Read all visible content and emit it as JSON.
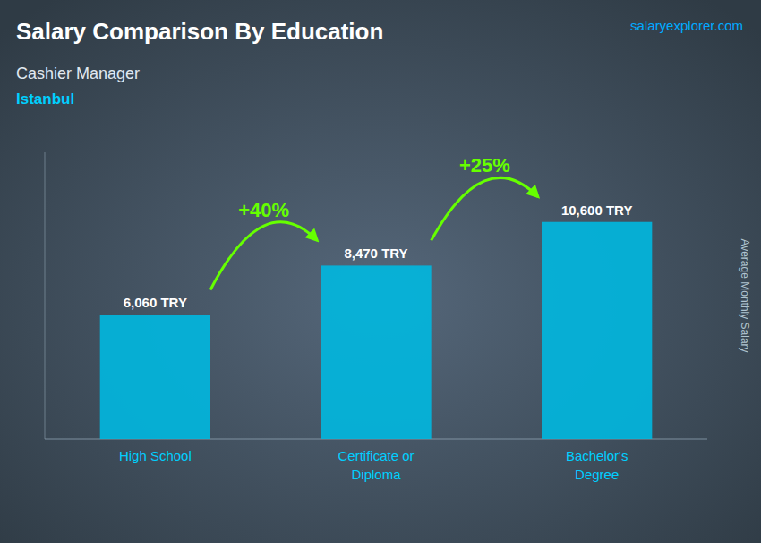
{
  "chart_data": {
    "type": "bar",
    "title": "Salary Comparison By Education",
    "subtitle": "Cashier Manager",
    "city": "Istanbul",
    "source": "salaryexplorer.com",
    "ylabel": "Average Monthly Salary",
    "categories": [
      "High School",
      "Certificate or\nDiploma",
      "Bachelor's\nDegree"
    ],
    "values": [
      6060,
      8470,
      10600
    ],
    "value_labels": [
      "6,060 TRY",
      "8,470 TRY",
      "10,600 TRY"
    ],
    "data_labels": true,
    "annotations": [
      "+40%",
      "+25%"
    ],
    "color": "#00b8e0",
    "ylim": [
      0,
      14000
    ],
    "tick_labels": false,
    "grid": false
  }
}
